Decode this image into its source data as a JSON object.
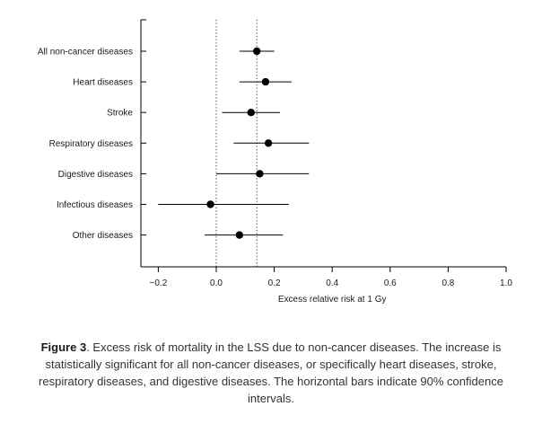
{
  "chart_data": {
    "type": "scatter",
    "style": "forest-plot",
    "orientation": "horizontal",
    "xlabel": "Excess relative risk at 1 Gy",
    "xlim": [
      -0.25,
      1.0
    ],
    "xticks": [
      -0.2,
      0.0,
      0.2,
      0.4,
      0.6,
      0.8,
      1.0
    ],
    "xtick_labels": [
      "−0.2",
      "0.0",
      "0.2",
      "0.4",
      "0.6",
      "0.8",
      "1.0"
    ],
    "reference_lines": [
      0.0,
      0.14
    ],
    "categories": [
      "All non-cancer diseases",
      "Heart diseases",
      "Stroke",
      "Respiratory diseases",
      "Digestive diseases",
      "Infectious diseases",
      "Other diseases"
    ],
    "estimate": [
      0.14,
      0.17,
      0.12,
      0.18,
      0.15,
      -0.02,
      0.08
    ],
    "ci_lower": [
      0.08,
      0.08,
      0.02,
      0.06,
      0.0,
      -0.2,
      -0.04
    ],
    "ci_upper": [
      0.2,
      0.26,
      0.22,
      0.32,
      0.32,
      0.25,
      0.23
    ],
    "colors": {
      "marker": "#000000",
      "axis": "#000000"
    }
  },
  "caption": {
    "label": "Figure 3",
    "text": ". Excess risk of mortality in the LSS due to non-cancer diseases. The increase is statistically significant for all non-cancer diseases, or specifically heart diseases, stroke, respiratory diseases, and digestive diseases. The horizontal bars indicate 90% confidence intervals."
  }
}
